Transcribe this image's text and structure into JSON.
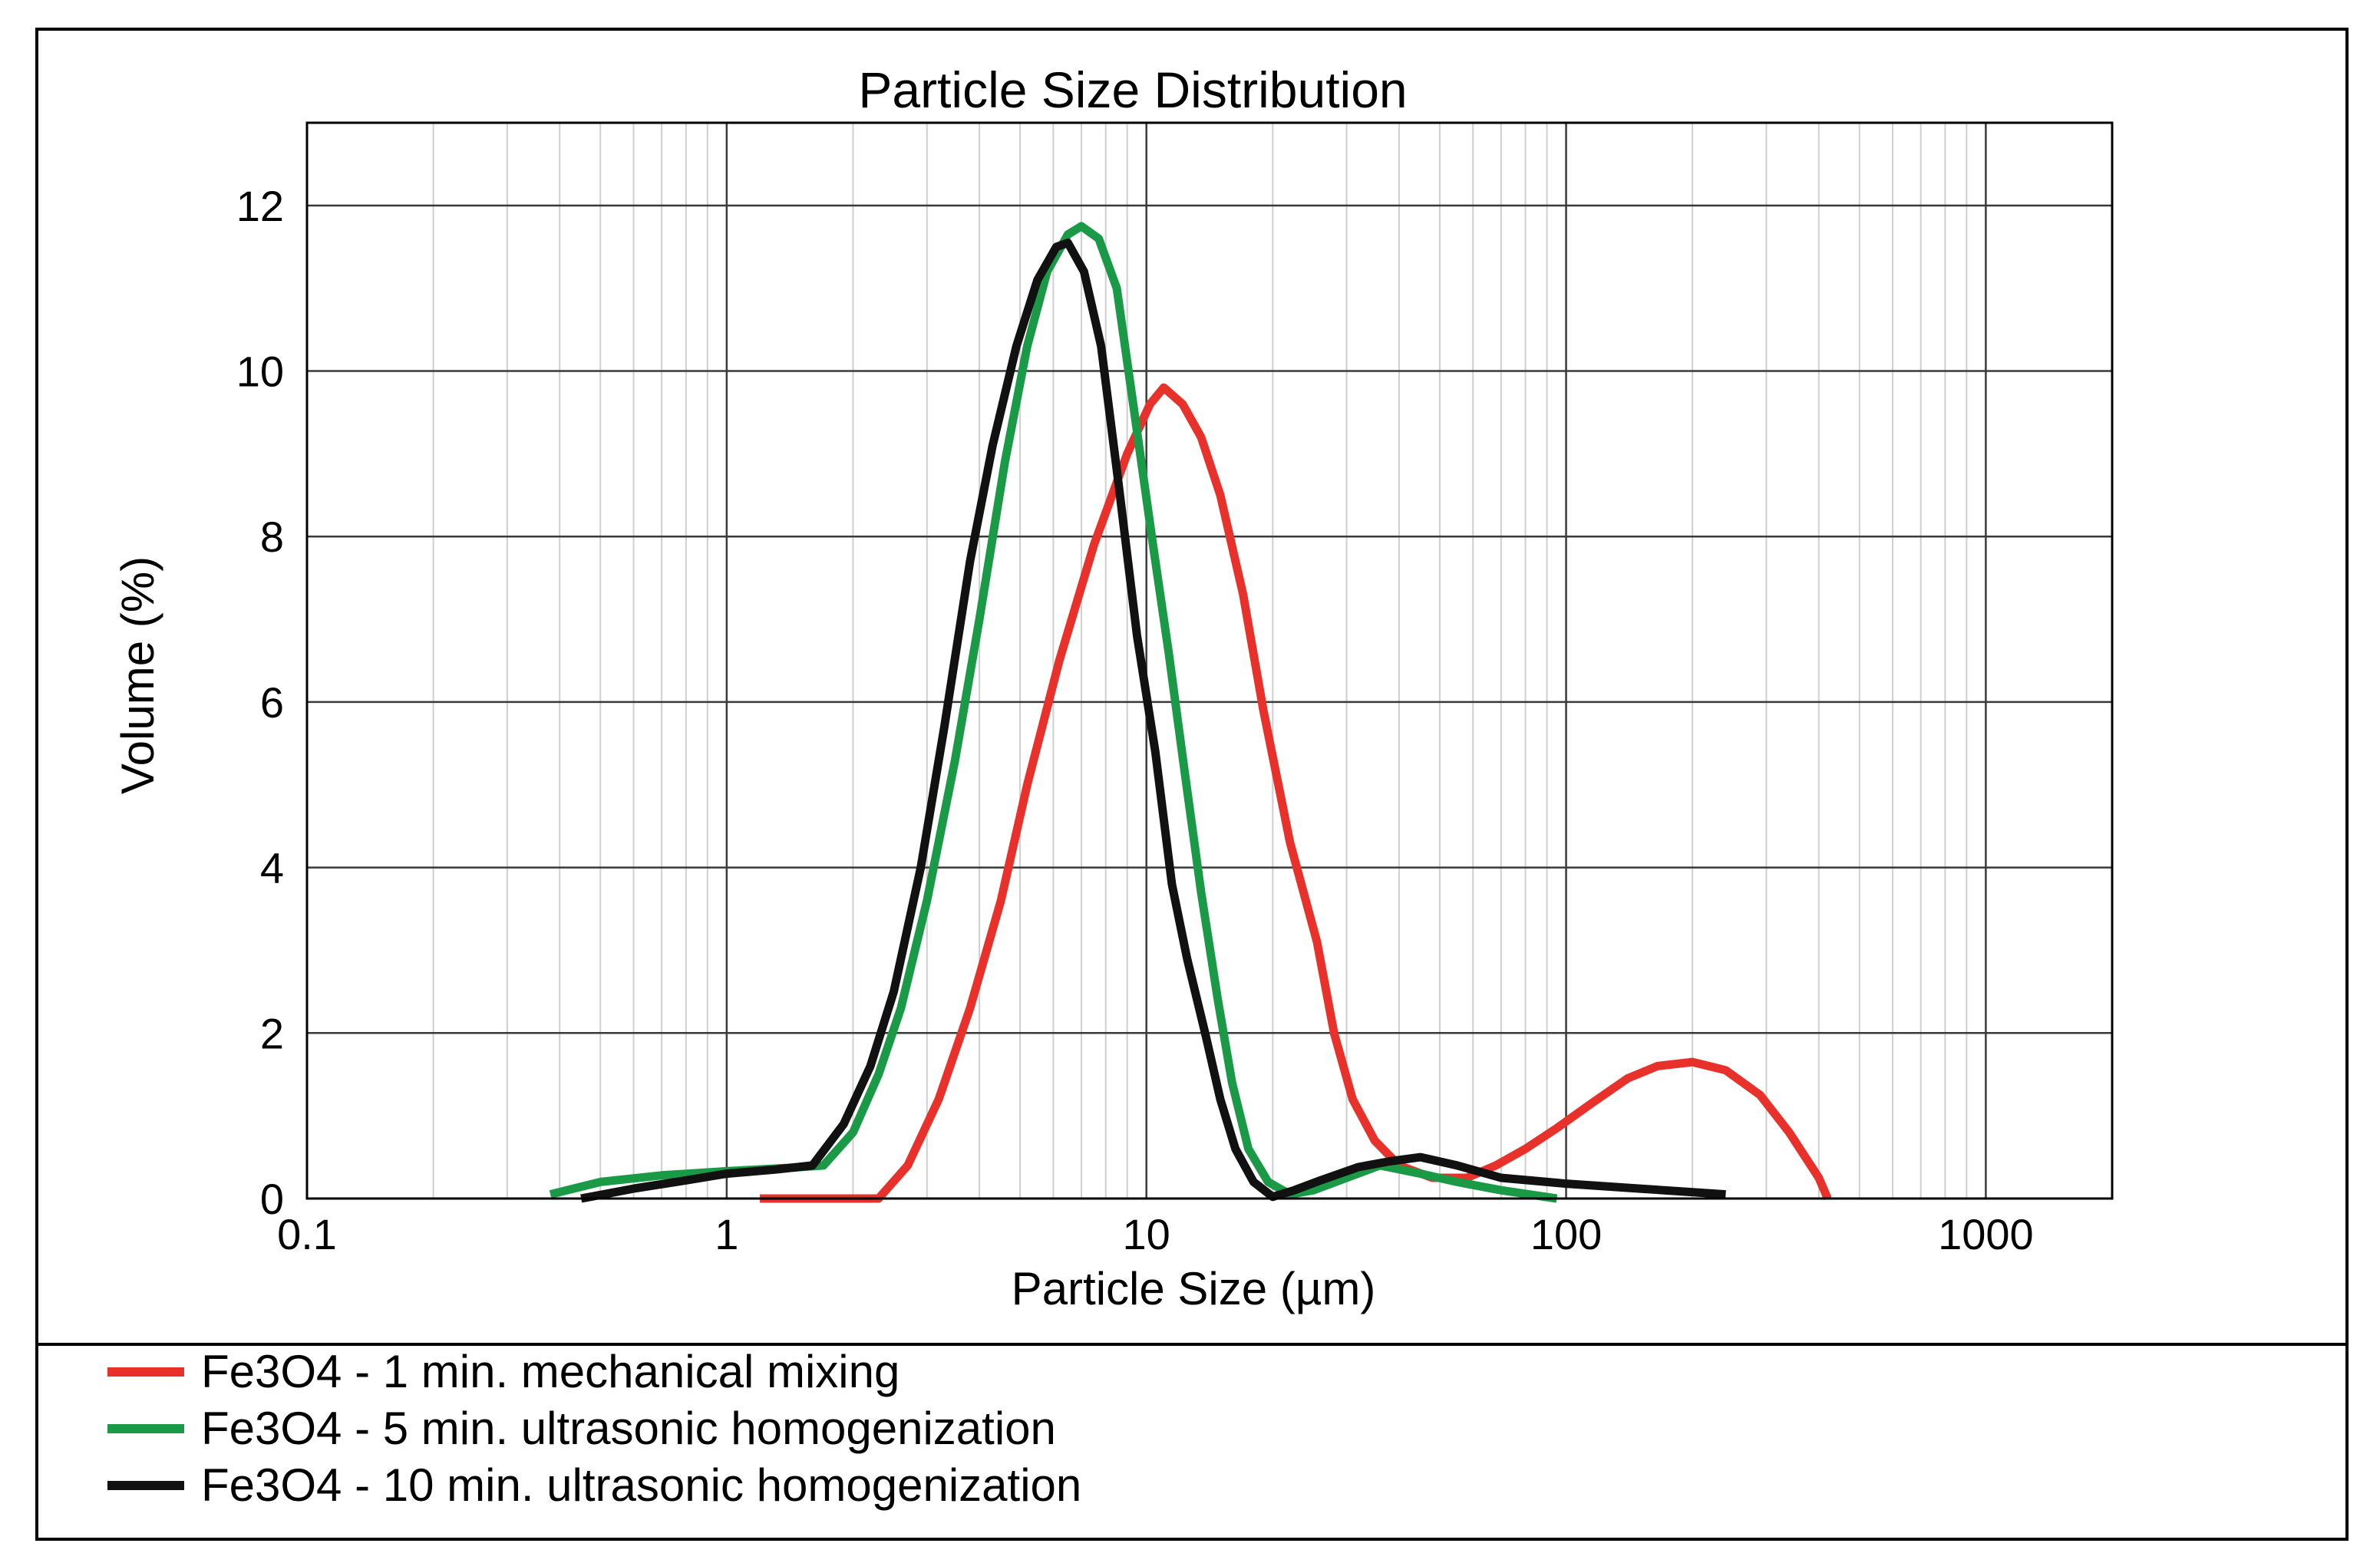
{
  "chart_data": {
    "type": "line",
    "title": "Particle Size Distribution",
    "xlabel": "Particle Size (µm)",
    "ylabel": "Volume (%)",
    "xscale": "log",
    "xlim": [
      0.1,
      2000
    ],
    "ylim": [
      0,
      13
    ],
    "x_ticks": [
      {
        "value": 0.1,
        "label": "0.1"
      },
      {
        "value": 1,
        "label": "1"
      },
      {
        "value": 10,
        "label": "10"
      },
      {
        "value": 100,
        "label": "100"
      },
      {
        "value": 1000,
        "label": "1000"
      }
    ],
    "y_ticks": [
      {
        "value": 0,
        "label": "0"
      },
      {
        "value": 2,
        "label": "2"
      },
      {
        "value": 4,
        "label": "4"
      },
      {
        "value": 6,
        "label": "6"
      },
      {
        "value": 8,
        "label": "8"
      },
      {
        "value": 10,
        "label": "10"
      },
      {
        "value": 12,
        "label": "12"
      }
    ],
    "grid": true,
    "legend_position": "bottom",
    "series": [
      {
        "name": "Fe3O4 - 1 min. mechanical mixing",
        "color": "#e8312a",
        "points": [
          [
            1.2,
            0
          ],
          [
            2.3,
            0
          ],
          [
            2.7,
            0.4
          ],
          [
            3.2,
            1.2
          ],
          [
            3.8,
            2.3
          ],
          [
            4.5,
            3.6
          ],
          [
            5.2,
            5.0
          ],
          [
            6.2,
            6.5
          ],
          [
            7.5,
            7.9
          ],
          [
            9.0,
            9.0
          ],
          [
            10.2,
            9.6
          ],
          [
            11.0,
            9.8
          ],
          [
            12.2,
            9.6
          ],
          [
            13.5,
            9.2
          ],
          [
            15.0,
            8.5
          ],
          [
            17.0,
            7.3
          ],
          [
            19.0,
            5.9
          ],
          [
            22.0,
            4.3
          ],
          [
            25.5,
            3.1
          ],
          [
            28.0,
            2.0
          ],
          [
            31.0,
            1.2
          ],
          [
            35.0,
            0.7
          ],
          [
            40.0,
            0.4
          ],
          [
            48.0,
            0.25
          ],
          [
            58.0,
            0.25
          ],
          [
            68.0,
            0.4
          ],
          [
            80.0,
            0.6
          ],
          [
            95.0,
            0.85
          ],
          [
            115.0,
            1.15
          ],
          [
            140.0,
            1.45
          ],
          [
            165.0,
            1.6
          ],
          [
            200.0,
            1.65
          ],
          [
            240.0,
            1.55
          ],
          [
            290.0,
            1.25
          ],
          [
            340.0,
            0.8
          ],
          [
            400.0,
            0.25
          ],
          [
            420.0,
            0
          ]
        ]
      },
      {
        "name": "Fe3O4 - 5 min. ultrasonic homogenization",
        "color": "#1a9a47",
        "points": [
          [
            0.38,
            0.05
          ],
          [
            0.5,
            0.2
          ],
          [
            0.7,
            0.28
          ],
          [
            1.0,
            0.33
          ],
          [
            1.4,
            0.37
          ],
          [
            1.7,
            0.4
          ],
          [
            2.0,
            0.8
          ],
          [
            2.3,
            1.5
          ],
          [
            2.6,
            2.3
          ],
          [
            3.0,
            3.6
          ],
          [
            3.5,
            5.3
          ],
          [
            4.0,
            7.0
          ],
          [
            4.6,
            8.9
          ],
          [
            5.2,
            10.3
          ],
          [
            5.8,
            11.2
          ],
          [
            6.5,
            11.65
          ],
          [
            7.0,
            11.75
          ],
          [
            7.7,
            11.6
          ],
          [
            8.5,
            11.0
          ],
          [
            9.3,
            9.6
          ],
          [
            10.3,
            8.0
          ],
          [
            11.3,
            6.6
          ],
          [
            12.3,
            5.2
          ],
          [
            13.5,
            3.7
          ],
          [
            14.8,
            2.4
          ],
          [
            16.0,
            1.4
          ],
          [
            17.5,
            0.6
          ],
          [
            19.5,
            0.2
          ],
          [
            22.0,
            0.05
          ],
          [
            25.0,
            0.1
          ],
          [
            30.0,
            0.25
          ],
          [
            36.0,
            0.4
          ],
          [
            45.0,
            0.3
          ],
          [
            55.0,
            0.2
          ],
          [
            70.0,
            0.1
          ],
          [
            95.0,
            0
          ]
        ]
      },
      {
        "name": "Fe3O4 - 10 min. ultrasonic homogenization",
        "color": "#111111",
        "points": [
          [
            0.45,
            0
          ],
          [
            0.6,
            0.12
          ],
          [
            0.8,
            0.22
          ],
          [
            1.0,
            0.3
          ],
          [
            1.3,
            0.35
          ],
          [
            1.6,
            0.4
          ],
          [
            1.9,
            0.9
          ],
          [
            2.2,
            1.6
          ],
          [
            2.5,
            2.5
          ],
          [
            2.9,
            4.0
          ],
          [
            3.3,
            5.7
          ],
          [
            3.8,
            7.7
          ],
          [
            4.3,
            9.1
          ],
          [
            4.9,
            10.3
          ],
          [
            5.5,
            11.1
          ],
          [
            6.1,
            11.5
          ],
          [
            6.5,
            11.55
          ],
          [
            7.1,
            11.2
          ],
          [
            7.8,
            10.3
          ],
          [
            8.6,
            8.6
          ],
          [
            9.5,
            6.8
          ],
          [
            10.5,
            5.4
          ],
          [
            11.5,
            3.8
          ],
          [
            12.5,
            2.9
          ],
          [
            13.8,
            2.0
          ],
          [
            15.0,
            1.2
          ],
          [
            16.3,
            0.6
          ],
          [
            18.0,
            0.2
          ],
          [
            20.0,
            0.02
          ],
          [
            22.5,
            0.1
          ],
          [
            26.0,
            0.22
          ],
          [
            32.0,
            0.38
          ],
          [
            38.0,
            0.45
          ],
          [
            45.0,
            0.5
          ],
          [
            55.0,
            0.4
          ],
          [
            70.0,
            0.25
          ],
          [
            100.0,
            0.18
          ],
          [
            150.0,
            0.12
          ],
          [
            240.0,
            0.05
          ]
        ]
      }
    ]
  }
}
